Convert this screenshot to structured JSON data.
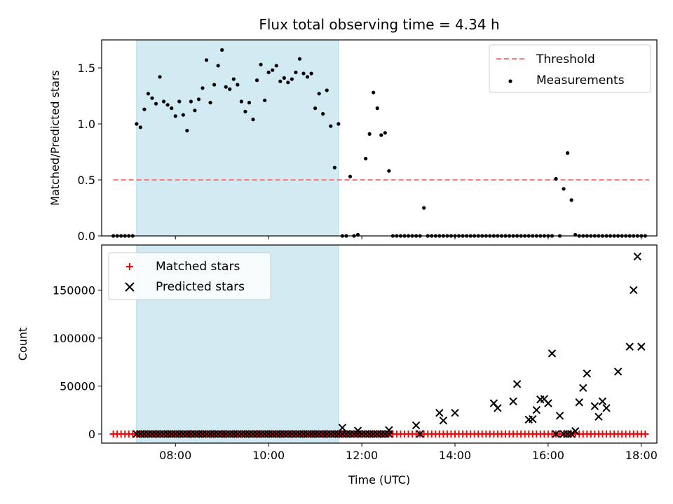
{
  "colors": {
    "threshold": "#ff7a7a",
    "shade": "#add8e6",
    "measurement": "#000000",
    "matched": "#ff0000",
    "predicted": "#000000"
  },
  "chart_data": [
    {
      "type": "scatter",
      "title": "Flux total observing time = 4.34 h",
      "xlabel": "",
      "ylabel": "Matched/Predicted stars",
      "xlim": [
        "06:25",
        "18:20"
      ],
      "ylim": [
        0,
        1.75
      ],
      "yticks": [
        0.0,
        0.5,
        1.0,
        1.5
      ],
      "ytick_labels": [
        "0.0",
        "0.5",
        "1.0",
        "1.5"
      ],
      "xticks": [
        "08:00",
        "10:00",
        "12:00",
        "14:00",
        "16:00",
        "18:00"
      ],
      "legend": {
        "placement": "upper right",
        "entries": [
          "Threshold",
          "Measurements"
        ]
      },
      "shaded_interval": [
        "07:10",
        "11:30"
      ],
      "threshold": {
        "name": "Threshold",
        "y": 0.5,
        "x_range": [
          "06:40",
          "18:10"
        ],
        "style": "dashed"
      },
      "series": [
        {
          "name": "Measurements",
          "points": [
            [
              "06:40",
              0.0
            ],
            [
              "06:45",
              0.0
            ],
            [
              "06:50",
              0.0
            ],
            [
              "06:55",
              0.0
            ],
            [
              "07:00",
              0.0
            ],
            [
              "07:05",
              0.0
            ],
            [
              "07:10",
              1.0
            ],
            [
              "07:15",
              0.97
            ],
            [
              "07:20",
              1.13
            ],
            [
              "07:25",
              1.27
            ],
            [
              "07:30",
              1.23
            ],
            [
              "07:35",
              1.18
            ],
            [
              "07:40",
              1.42
            ],
            [
              "07:45",
              1.2
            ],
            [
              "07:50",
              1.17
            ],
            [
              "07:55",
              1.14
            ],
            [
              "08:00",
              1.07
            ],
            [
              "08:05",
              1.2
            ],
            [
              "08:10",
              1.08
            ],
            [
              "08:15",
              0.94
            ],
            [
              "08:20",
              1.2
            ],
            [
              "08:25",
              1.12
            ],
            [
              "08:30",
              1.22
            ],
            [
              "08:35",
              1.32
            ],
            [
              "08:40",
              1.57
            ],
            [
              "08:45",
              1.19
            ],
            [
              "08:50",
              1.35
            ],
            [
              "08:55",
              1.52
            ],
            [
              "09:00",
              1.66
            ],
            [
              "09:05",
              1.33
            ],
            [
              "09:10",
              1.31
            ],
            [
              "09:15",
              1.4
            ],
            [
              "09:20",
              1.35
            ],
            [
              "09:25",
              1.2
            ],
            [
              "09:30",
              1.11
            ],
            [
              "09:35",
              1.19
            ],
            [
              "09:40",
              1.04
            ],
            [
              "09:45",
              1.39
            ],
            [
              "09:50",
              1.53
            ],
            [
              "09:55",
              1.21
            ],
            [
              "10:00",
              1.46
            ],
            [
              "10:05",
              1.48
            ],
            [
              "10:10",
              1.52
            ],
            [
              "10:15",
              1.38
            ],
            [
              "10:20",
              1.41
            ],
            [
              "10:25",
              1.37
            ],
            [
              "10:30",
              1.4
            ],
            [
              "10:35",
              1.46
            ],
            [
              "10:40",
              1.58
            ],
            [
              "10:45",
              1.45
            ],
            [
              "10:50",
              1.42
            ],
            [
              "10:55",
              1.45
            ],
            [
              "11:00",
              1.14
            ],
            [
              "11:05",
              1.27
            ],
            [
              "11:10",
              1.09
            ],
            [
              "11:15",
              1.3
            ],
            [
              "11:20",
              0.98
            ],
            [
              "11:25",
              0.61
            ],
            [
              "11:30",
              1.0
            ],
            [
              "11:35",
              0.0
            ],
            [
              "11:40",
              0.0
            ],
            [
              "11:45",
              0.53
            ],
            [
              "11:50",
              0.0
            ],
            [
              "11:55",
              0.01
            ],
            [
              "12:05",
              0.69
            ],
            [
              "12:10",
              0.91
            ],
            [
              "12:15",
              1.28
            ],
            [
              "12:20",
              1.14
            ],
            [
              "12:25",
              0.9
            ],
            [
              "12:30",
              0.92
            ],
            [
              "12:35",
              0.58
            ],
            [
              "12:40",
              0.0
            ],
            [
              "12:45",
              0.0
            ],
            [
              "12:50",
              0.0
            ],
            [
              "12:55",
              0.0
            ],
            [
              "13:00",
              0.0
            ],
            [
              "13:05",
              0.0
            ],
            [
              "13:10",
              0.0
            ],
            [
              "13:15",
              0.0
            ],
            [
              "13:20",
              0.25
            ],
            [
              "13:25",
              0.0
            ],
            [
              "13:30",
              0.0
            ],
            [
              "13:35",
              0.0
            ],
            [
              "13:40",
              0.0
            ],
            [
              "13:45",
              0.0
            ],
            [
              "13:50",
              0.0
            ],
            [
              "13:55",
              0.0
            ],
            [
              "14:00",
              0.0
            ],
            [
              "14:05",
              0.0
            ],
            [
              "14:10",
              0.0
            ],
            [
              "14:15",
              0.0
            ],
            [
              "14:20",
              0.0
            ],
            [
              "14:25",
              0.0
            ],
            [
              "14:30",
              0.0
            ],
            [
              "14:35",
              0.0
            ],
            [
              "14:40",
              0.0
            ],
            [
              "14:45",
              0.0
            ],
            [
              "14:50",
              0.0
            ],
            [
              "14:55",
              0.0
            ],
            [
              "15:00",
              0.0
            ],
            [
              "15:05",
              0.0
            ],
            [
              "15:10",
              0.0
            ],
            [
              "15:15",
              0.0
            ],
            [
              "15:20",
              0.0
            ],
            [
              "15:25",
              0.0
            ],
            [
              "15:30",
              0.0
            ],
            [
              "15:35",
              0.0
            ],
            [
              "15:40",
              0.0
            ],
            [
              "15:45",
              0.0
            ],
            [
              "15:50",
              0.0
            ],
            [
              "15:55",
              0.0
            ],
            [
              "16:00",
              0.0
            ],
            [
              "16:05",
              0.0
            ],
            [
              "16:10",
              0.51
            ],
            [
              "16:15",
              0.0
            ],
            [
              "16:20",
              0.42
            ],
            [
              "16:25",
              0.74
            ],
            [
              "16:30",
              0.32
            ],
            [
              "16:35",
              0.01
            ],
            [
              "16:40",
              0.0
            ],
            [
              "16:45",
              0.0
            ],
            [
              "16:50",
              0.0
            ],
            [
              "16:55",
              0.0
            ],
            [
              "17:00",
              0.0
            ],
            [
              "17:05",
              0.0
            ],
            [
              "17:10",
              0.0
            ],
            [
              "17:15",
              0.0
            ],
            [
              "17:20",
              0.0
            ],
            [
              "17:25",
              0.0
            ],
            [
              "17:30",
              0.0
            ],
            [
              "17:35",
              0.0
            ],
            [
              "17:40",
              0.0
            ],
            [
              "17:45",
              0.0
            ],
            [
              "17:50",
              0.0
            ],
            [
              "17:55",
              0.0
            ],
            [
              "18:00",
              0.0
            ],
            [
              "18:05",
              0.0
            ]
          ]
        }
      ]
    },
    {
      "type": "scatter",
      "title": "",
      "xlabel": "Time (UTC)",
      "ylabel": "Count",
      "xlim": [
        "06:25",
        "18:20"
      ],
      "ylim": [
        -9500,
        197000
      ],
      "yticks": [
        0,
        50000,
        100000,
        150000
      ],
      "ytick_labels": [
        "0",
        "50000",
        "100000",
        "150000"
      ],
      "xticks": [
        "08:00",
        "10:00",
        "12:00",
        "14:00",
        "16:00",
        "18:00"
      ],
      "xtick_labels": [
        "08:00",
        "10:00",
        "12:00",
        "14:00",
        "16:00",
        "18:00"
      ],
      "legend": {
        "placement": "upper left",
        "entries": [
          "Matched stars",
          "Predicted stars"
        ]
      },
      "shaded_interval": [
        "07:10",
        "11:30"
      ],
      "series": [
        {
          "name": "Matched stars",
          "marker": "plus",
          "x_start": "06:40",
          "x_end": "18:05",
          "x_step_minutes": 5,
          "value": 0
        },
        {
          "name": "Predicted stars",
          "marker": "x",
          "dense_zero": {
            "x_start": "07:10",
            "x_end": "12:35",
            "x_step_minutes": 5,
            "value": 0
          },
          "points": [
            [
              "11:35",
              6500
            ],
            [
              "11:55",
              3500
            ],
            [
              "12:35",
              4000
            ],
            [
              "13:10",
              9000
            ],
            [
              "13:15",
              0
            ],
            [
              "13:40",
              22000
            ],
            [
              "13:45",
              14000
            ],
            [
              "14:00",
              22000
            ],
            [
              "14:50",
              32000
            ],
            [
              "14:55",
              27000
            ],
            [
              "15:15",
              34000
            ],
            [
              "15:20",
              52000
            ],
            [
              "15:35",
              15000
            ],
            [
              "15:40",
              15500
            ],
            [
              "15:45",
              25000
            ],
            [
              "15:50",
              36000
            ],
            [
              "15:55",
              36500
            ],
            [
              "16:00",
              32000
            ],
            [
              "16:05",
              84000
            ],
            [
              "16:10",
              0
            ],
            [
              "16:15",
              19000
            ],
            [
              "16:20",
              0
            ],
            [
              "16:25",
              0
            ],
            [
              "16:30",
              0
            ],
            [
              "16:35",
              3000
            ],
            [
              "16:40",
              33000
            ],
            [
              "16:45",
              48000
            ],
            [
              "16:50",
              63000
            ],
            [
              "17:00",
              29000
            ],
            [
              "17:05",
              18000
            ],
            [
              "17:10",
              34000
            ],
            [
              "17:15",
              27000
            ],
            [
              "17:30",
              65000
            ],
            [
              "17:45",
              91000
            ],
            [
              "17:50",
              150000
            ],
            [
              "17:55",
              185000
            ],
            [
              "18:00",
              91000
            ]
          ]
        }
      ]
    }
  ]
}
